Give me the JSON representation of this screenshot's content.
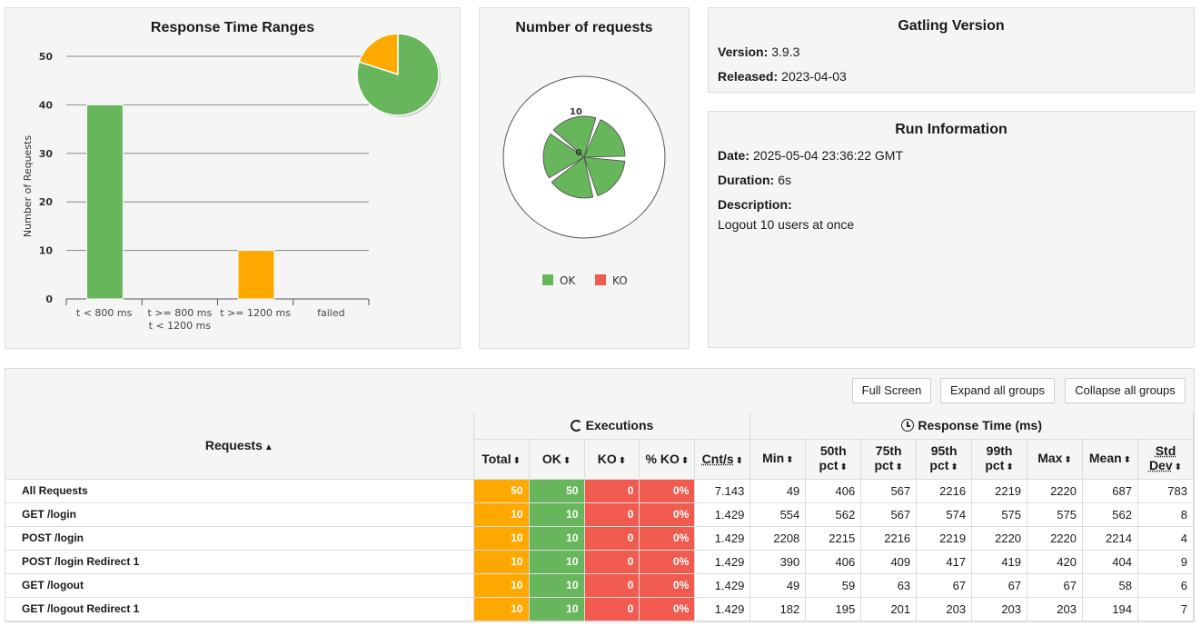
{
  "ranges_panel": {
    "title": "Response Time Ranges",
    "chart_data": {
      "type": "bar",
      "categories": [
        "t < 800 ms",
        "t >= 800 ms t < 1200 ms",
        "t >= 1200 ms",
        "failed"
      ],
      "values": [
        40,
        0,
        10,
        0
      ],
      "ylabel": "Number of Requests",
      "ylim": [
        0,
        50
      ],
      "yticks": [
        "0",
        "10",
        "20",
        "30",
        "40",
        "50"
      ],
      "pie": [
        {
          "name": "t < 800 ms",
          "value": 40,
          "color": "#68b65c"
        },
        {
          "name": "t >= 1200 ms",
          "value": 10,
          "color": "#ffa900"
        }
      ],
      "colors": [
        "#68b65c",
        "#ffa900",
        "#ffa900",
        "#f15b4f"
      ]
    }
  },
  "requests_panel": {
    "title": "Number of requests",
    "tick_max": "10",
    "tick_min": "0",
    "legend": [
      {
        "label": "OK",
        "color": "#68b65c"
      },
      {
        "label": "KO",
        "color": "#f15b4f"
      }
    ],
    "chart_data": {
      "type": "pie",
      "categories": [
        "GET /login",
        "POST /login",
        "POST /login Redirect 1",
        "GET /logout",
        "GET /logout Redirect 1"
      ],
      "series": [
        {
          "name": "OK",
          "values": [
            10,
            10,
            10,
            10,
            10
          ]
        },
        {
          "name": "KO",
          "values": [
            0,
            0,
            0,
            0,
            0
          ]
        }
      ]
    }
  },
  "version_panel": {
    "title": "Gatling Version",
    "version_label": "Version:",
    "version_value": "3.9.3",
    "released_label": "Released:",
    "released_value": "2023-04-03"
  },
  "run_panel": {
    "title": "Run Information",
    "date_label": "Date:",
    "date_value": "2025-05-04 23:36:22 GMT",
    "duration_label": "Duration:",
    "duration_value": "6s",
    "description_label": "Description:",
    "description_value": "Logout 10 users at once"
  },
  "toolbar": {
    "full_screen": "Full Screen",
    "expand_all": "Expand all groups",
    "collapse_all": "Collapse all groups"
  },
  "table": {
    "requests_header": "Requests",
    "executions_header": "Executions",
    "response_time_header": "Response Time (ms)",
    "exec_columns": [
      "Total",
      "OK",
      "KO",
      "% KO",
      "Cnt/s"
    ],
    "rt_columns": [
      [
        "Min",
        ""
      ],
      [
        "50th",
        "pct"
      ],
      [
        "75th",
        "pct"
      ],
      [
        "95th",
        "pct"
      ],
      [
        "99th",
        "pct"
      ],
      [
        "Max",
        ""
      ],
      [
        "Mean",
        ""
      ],
      [
        "Std",
        "Dev"
      ]
    ],
    "rows": [
      [
        "All Requests",
        "50",
        "50",
        "0",
        "0%",
        "7.143",
        "49",
        "406",
        "567",
        "2216",
        "2219",
        "2220",
        "687",
        "783"
      ],
      [
        "GET /login",
        "10",
        "10",
        "0",
        "0%",
        "1.429",
        "554",
        "562",
        "567",
        "574",
        "575",
        "575",
        "562",
        "8"
      ],
      [
        "POST /login",
        "10",
        "10",
        "0",
        "0%",
        "1.429",
        "2208",
        "2215",
        "2216",
        "2219",
        "2220",
        "2220",
        "2214",
        "4"
      ],
      [
        "POST /login Redirect 1",
        "10",
        "10",
        "0",
        "0%",
        "1.429",
        "390",
        "406",
        "409",
        "417",
        "419",
        "420",
        "404",
        "9"
      ],
      [
        "GET /logout",
        "10",
        "10",
        "0",
        "0%",
        "1.429",
        "49",
        "59",
        "63",
        "67",
        "67",
        "67",
        "58",
        "6"
      ],
      [
        "GET /logout Redirect 1",
        "10",
        "10",
        "0",
        "0%",
        "1.429",
        "182",
        "195",
        "201",
        "203",
        "203",
        "203",
        "194",
        "7"
      ]
    ]
  }
}
